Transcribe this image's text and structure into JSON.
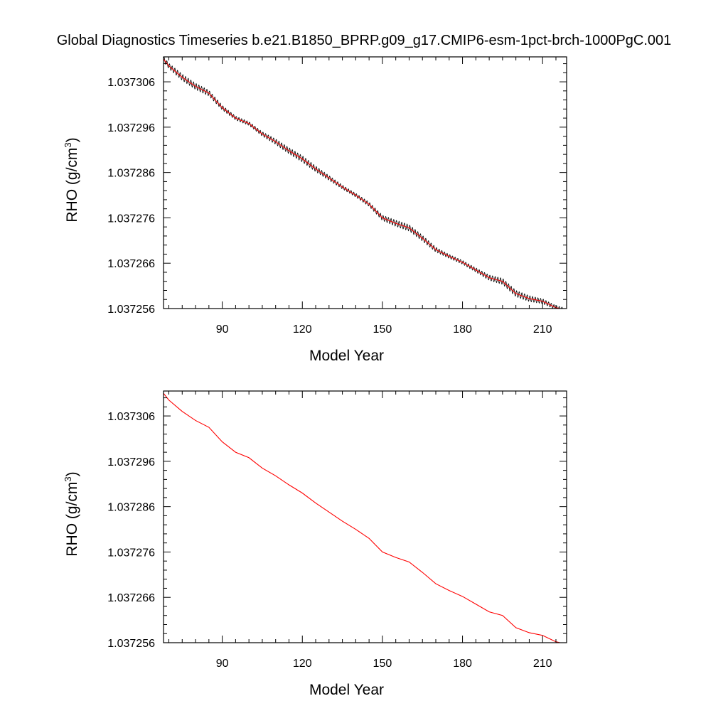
{
  "page_title": "Global Diagnostics Timeseries b.e21.B1850_BPRP.g09_g17.CMIP6-esm-1pct-brch-1000PgC.001",
  "colors": {
    "raw_series": "#000000",
    "smoothed_series": "#ff0000",
    "axis": "#000000"
  },
  "chart_data": [
    {
      "type": "line",
      "title": "",
      "xlabel": "Model Year",
      "ylabel": "RHO (g/cm",
      "ylabel_sup": "3",
      "ylabel_tail": ")",
      "xlim": [
        68,
        219
      ],
      "ylim": [
        1.037256,
        1.0373115
      ],
      "x_ticks": [
        90,
        120,
        150,
        180,
        210
      ],
      "y_ticks": [
        1.037256,
        1.037266,
        1.037276,
        1.037286,
        1.037296,
        1.037306
      ],
      "x_tick_labels": [
        "90",
        "120",
        "150",
        "180",
        "210"
      ],
      "y_tick_labels": [
        "1.037256",
        "1.037266",
        "1.037276",
        "1.037286",
        "1.037296",
        "1.037306"
      ],
      "series": [
        {
          "color": "#000000",
          "monthly": true,
          "x": [
            68,
            70,
            75,
            80,
            85,
            90,
            95,
            100,
            105,
            110,
            115,
            120,
            125,
            130,
            135,
            140,
            145,
            150,
            155,
            160,
            165,
            170,
            175,
            180,
            185,
            190,
            195,
            200,
            205,
            210,
            215,
            218
          ],
          "y": [
            1.037311,
            1.0373095,
            1.037307,
            1.037305,
            1.0373035,
            1.0373003,
            1.037298,
            1.0372968,
            1.0372945,
            1.0372928,
            1.0372908,
            1.037289,
            1.0372868,
            1.0372848,
            1.0372828,
            1.037281,
            1.037279,
            1.037276,
            1.0372748,
            1.0372738,
            1.0372715,
            1.037269,
            1.0372675,
            1.0372662,
            1.0372645,
            1.0372628,
            1.037262,
            1.0372593,
            1.0372582,
            1.0372576,
            1.0372562,
            1.0372558
          ]
        },
        {
          "color": "#ff0000",
          "x": [
            68,
            70,
            75,
            80,
            85,
            90,
            95,
            100,
            105,
            110,
            115,
            120,
            125,
            130,
            135,
            140,
            145,
            150,
            155,
            160,
            165,
            170,
            175,
            180,
            185,
            190,
            195,
            200,
            205,
            210,
            215,
            218
          ],
          "y": [
            1.037311,
            1.0373095,
            1.037307,
            1.037305,
            1.0373035,
            1.0373003,
            1.037298,
            1.0372968,
            1.0372945,
            1.0372928,
            1.0372908,
            1.037289,
            1.0372868,
            1.0372848,
            1.0372828,
            1.037281,
            1.037279,
            1.037276,
            1.0372748,
            1.0372738,
            1.0372715,
            1.037269,
            1.0372675,
            1.0372662,
            1.0372645,
            1.0372628,
            1.037262,
            1.0372593,
            1.0372582,
            1.0372576,
            1.0372562,
            1.0372558
          ]
        }
      ]
    },
    {
      "type": "line",
      "title": "",
      "xlabel": "Model Year",
      "ylabel": "RHO (g/cm",
      "ylabel_sup": "3",
      "ylabel_tail": ")",
      "xlim": [
        68,
        219
      ],
      "ylim": [
        1.037256,
        1.0373115
      ],
      "x_ticks": [
        90,
        120,
        150,
        180,
        210
      ],
      "y_ticks": [
        1.037256,
        1.037266,
        1.037276,
        1.037286,
        1.037296,
        1.037306
      ],
      "x_tick_labels": [
        "90",
        "120",
        "150",
        "180",
        "210"
      ],
      "y_tick_labels": [
        "1.037256",
        "1.037266",
        "1.037276",
        "1.037286",
        "1.037296",
        "1.037306"
      ],
      "series": [
        {
          "color": "#ff0000",
          "x": [
            68,
            70,
            75,
            80,
            85,
            90,
            95,
            100,
            105,
            110,
            115,
            120,
            125,
            130,
            135,
            140,
            145,
            150,
            155,
            160,
            165,
            170,
            175,
            180,
            185,
            190,
            195,
            200,
            205,
            210,
            215,
            218
          ],
          "y": [
            1.037311,
            1.0373095,
            1.037307,
            1.037305,
            1.0373035,
            1.0373003,
            1.037298,
            1.0372968,
            1.0372945,
            1.0372928,
            1.0372908,
            1.037289,
            1.0372868,
            1.0372848,
            1.0372828,
            1.037281,
            1.037279,
            1.037276,
            1.0372748,
            1.0372738,
            1.0372715,
            1.037269,
            1.0372675,
            1.0372662,
            1.0372645,
            1.0372628,
            1.037262,
            1.0372593,
            1.0372582,
            1.0372576,
            1.0372562,
            1.0372558
          ]
        }
      ]
    }
  ]
}
